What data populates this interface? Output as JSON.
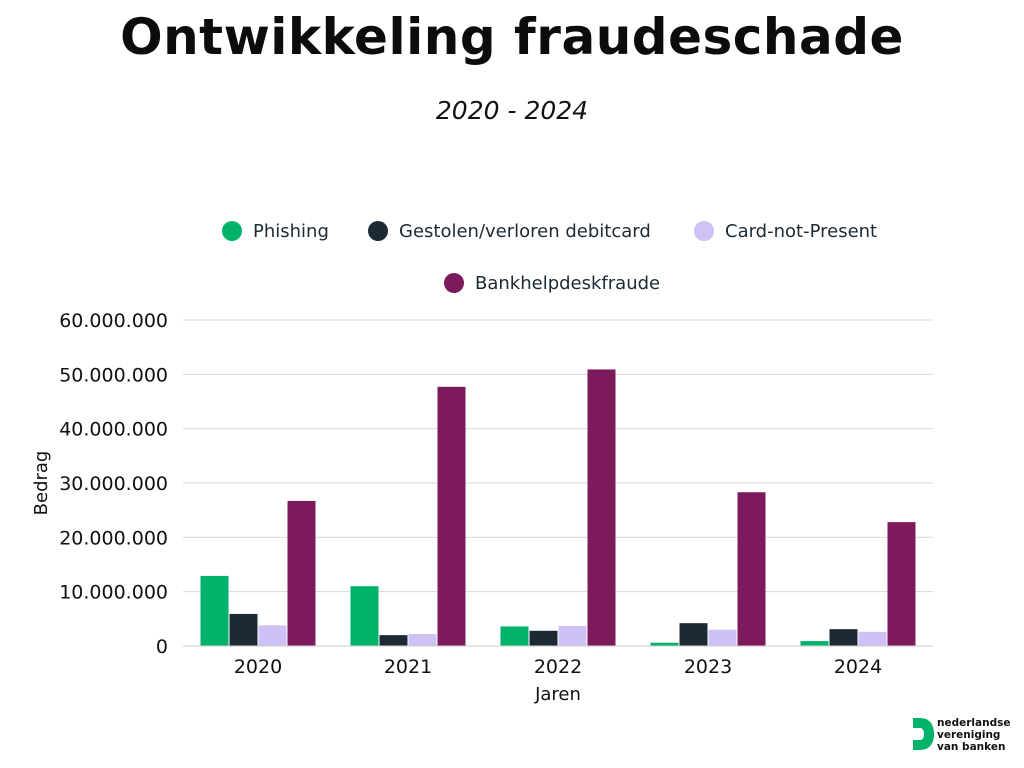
{
  "title": "Ontwikkeling fraudeschade",
  "subtitle": "2020 - 2024",
  "logo": {
    "lines": [
      "nederlandse",
      "vereniging",
      "van banken"
    ],
    "color": "#00b36b"
  },
  "chart_data": {
    "type": "bar",
    "categories": [
      "2020",
      "2021",
      "2022",
      "2023",
      "2024"
    ],
    "series": [
      {
        "name": "Phishing",
        "color": "#00b36b",
        "values": [
          12900000,
          11000000,
          3600000,
          600000,
          900000
        ]
      },
      {
        "name": "Gestolen/verloren debitcard",
        "color": "#1b2a35",
        "values": [
          5900000,
          2000000,
          2800000,
          4200000,
          3100000
        ]
      },
      {
        "name": "Card-not-Present",
        "color": "#cfc1f5",
        "values": [
          3800000,
          2200000,
          3700000,
          3000000,
          2600000
        ]
      },
      {
        "name": "Bankhelpdeskfraude",
        "color": "#7d1a5c",
        "values": [
          26700000,
          47700000,
          50900000,
          28300000,
          22800000
        ]
      }
    ],
    "xlabel": "Jaren",
    "ylabel": "Bedrag",
    "ylim": [
      0,
      60000000
    ],
    "yticks": [
      "0",
      "10.000.000",
      "20.000.000",
      "30.000.000",
      "40.000.000",
      "50.000.000",
      "60.000.000"
    ],
    "grid": true,
    "legend_position": "top"
  }
}
